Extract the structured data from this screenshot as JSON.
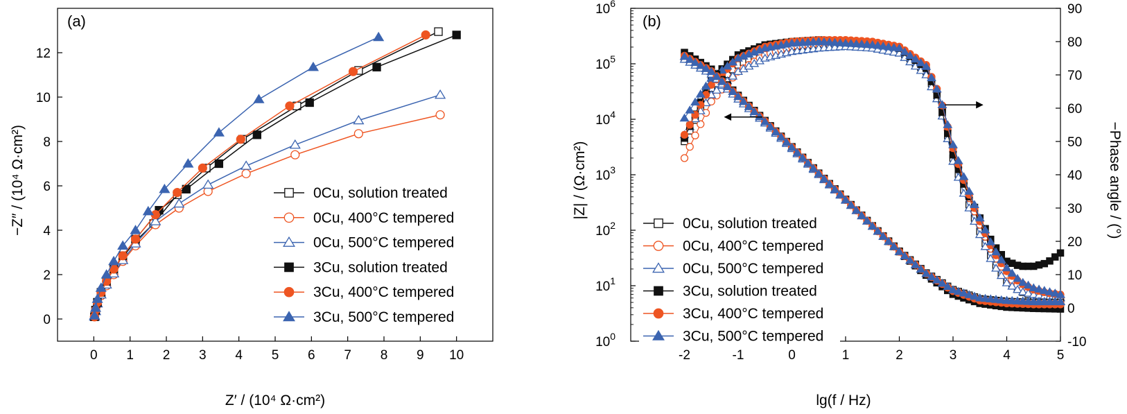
{
  "colors": {
    "black": "#111111",
    "orange": "#ee5522",
    "blue": "#3b64b0"
  },
  "legend_entries": [
    {
      "label": "0Cu, solution treated",
      "color": "#111111",
      "marker": "square",
      "filled": false
    },
    {
      "label": "0Cu, 400°C tempered",
      "color": "#ee5522",
      "marker": "circle",
      "filled": false
    },
    {
      "label": "0Cu, 500°C tempered",
      "color": "#3b64b0",
      "marker": "triangle",
      "filled": false
    },
    {
      "label": "3Cu, solution treated",
      "color": "#111111",
      "marker": "square",
      "filled": true
    },
    {
      "label": "3Cu, 400°C tempered",
      "color": "#ee5522",
      "marker": "circle",
      "filled": true
    },
    {
      "label": "3Cu, 500°C tempered",
      "color": "#3b64b0",
      "marker": "triangle",
      "filled": true
    }
  ],
  "chart_data": [
    {
      "type": "scatter",
      "panel_label": "(a)",
      "xlabel": "Z′ / (10⁴ Ω·cm²)",
      "ylabel": "−Z″ / (10⁴ Ω·cm²)",
      "xlim": [
        -1,
        11
      ],
      "ylim": [
        -1,
        14
      ],
      "xticks": [
        "0",
        "1",
        "2",
        "3",
        "4",
        "5",
        "6",
        "7",
        "8",
        "9",
        "10"
      ],
      "yticks": [
        "0",
        "2",
        "4",
        "6",
        "8",
        "10",
        "12"
      ],
      "legend_position": "bottom-right",
      "series": [
        {
          "name": "0Cu, solution treated",
          "x": [
            0.02,
            0.05,
            0.1,
            0.2,
            0.35,
            0.55,
            0.8,
            1.15,
            1.65,
            2.3,
            3.1,
            4.1,
            5.6,
            7.3,
            9.5
          ],
          "y": [
            0.1,
            0.4,
            0.75,
            1.2,
            1.7,
            2.2,
            2.8,
            3.5,
            4.3,
            5.6,
            6.8,
            8.1,
            9.6,
            11.2,
            12.95
          ]
        },
        {
          "name": "0Cu, 400°C tempered",
          "x": [
            0.02,
            0.05,
            0.1,
            0.2,
            0.35,
            0.55,
            0.8,
            1.15,
            1.7,
            2.35,
            3.15,
            4.2,
            5.55,
            7.3,
            9.55
          ],
          "y": [
            0.1,
            0.35,
            0.65,
            1.05,
            1.5,
            2.0,
            2.6,
            3.3,
            4.25,
            5.0,
            5.75,
            6.55,
            7.4,
            8.35,
            9.2
          ]
        },
        {
          "name": "0Cu, 500°C tempered",
          "x": [
            0.02,
            0.05,
            0.1,
            0.2,
            0.35,
            0.55,
            0.8,
            1.15,
            1.7,
            2.35,
            3.15,
            4.2,
            5.55,
            7.3,
            9.55
          ],
          "y": [
            0.1,
            0.35,
            0.7,
            1.1,
            1.55,
            2.05,
            2.65,
            3.4,
            4.4,
            5.2,
            6.05,
            6.9,
            7.85,
            8.95,
            10.1
          ]
        },
        {
          "name": "3Cu, solution treated",
          "x": [
            0.02,
            0.05,
            0.1,
            0.2,
            0.35,
            0.55,
            0.8,
            1.15,
            1.8,
            2.55,
            3.45,
            4.5,
            5.95,
            7.8,
            10.0
          ],
          "y": [
            0.1,
            0.4,
            0.75,
            1.2,
            1.7,
            2.25,
            2.85,
            3.6,
            4.9,
            5.85,
            7.0,
            8.3,
            9.75,
            11.35,
            12.8
          ]
        },
        {
          "name": "3Cu, 400°C tempered",
          "x": [
            0.02,
            0.05,
            0.1,
            0.2,
            0.35,
            0.55,
            0.8,
            1.15,
            1.7,
            2.3,
            3.0,
            4.05,
            5.4,
            7.15,
            9.15
          ],
          "y": [
            0.1,
            0.4,
            0.75,
            1.2,
            1.7,
            2.25,
            2.85,
            3.6,
            4.7,
            5.7,
            6.8,
            8.1,
            9.6,
            11.15,
            12.8
          ]
        },
        {
          "name": "3Cu, 500°C tempered",
          "x": [
            0.02,
            0.05,
            0.1,
            0.2,
            0.35,
            0.55,
            0.8,
            1.15,
            1.5,
            1.95,
            2.6,
            3.45,
            4.55,
            6.05,
            7.85
          ],
          "y": [
            0.15,
            0.5,
            0.9,
            1.4,
            2.0,
            2.6,
            3.3,
            4.0,
            4.85,
            5.85,
            7.0,
            8.4,
            9.9,
            11.35,
            12.7
          ]
        }
      ]
    },
    {
      "type": "scatter",
      "panel_label": "(b)",
      "xlabel": "lg(f / Hz)",
      "ylabel": "|Z| / (Ω·cm²)",
      "y2label": "−Phase angle / (°)",
      "xlim": [
        -3,
        5
      ],
      "ylim_log": [
        1,
        1000000
      ],
      "y2lim": [
        -10,
        90
      ],
      "xticks": [
        "-2",
        "-1",
        "0",
        "1",
        "2",
        "3",
        "4",
        "5"
      ],
      "yticks_exponents": [
        "0",
        "1",
        "2",
        "3",
        "4",
        "5",
        "6"
      ],
      "y2ticks": [
        "-10",
        "0",
        "10",
        "20",
        "30",
        "40",
        "50",
        "60",
        "70",
        "80",
        "90"
      ],
      "legend_position": "bottom-left",
      "annotations": [
        {
          "kind": "arrow",
          "points_to": "left",
          "x": [
            -0.55,
            -1.25
          ],
          "y_log": 11000
        },
        {
          "kind": "arrow",
          "points_to": "right",
          "x": [
            2.85,
            3.55
          ],
          "y2": 61
        }
      ],
      "phase_series": [
        {
          "name": "0Cu, solution treated",
          "x": [
            -2,
            -1.5,
            -1,
            -0.5,
            0,
            0.5,
            1,
            1.5,
            2,
            2.5,
            2.75,
            3,
            3.25,
            3.5,
            3.75,
            4,
            4.25,
            4.5,
            4.75,
            5
          ],
          "y": [
            50,
            66,
            73,
            77,
            78.5,
            79,
            79.5,
            79,
            77.5,
            71,
            62,
            45,
            33,
            23,
            14,
            8,
            5,
            3.5,
            3,
            2.5
          ]
        },
        {
          "name": "0Cu, 400°C tempered",
          "x": [
            -2,
            -1.5,
            -1,
            -0.5,
            0,
            0.5,
            1,
            1.5,
            2,
            2.5,
            2.75,
            3,
            3.25,
            3.5,
            3.75,
            4,
            4.25,
            4.5,
            4.75,
            5
          ],
          "y": [
            45,
            62,
            71,
            76,
            78.5,
            79.5,
            80,
            79.5,
            78,
            72,
            63,
            47,
            35,
            25,
            16,
            10,
            6,
            4.5,
            3.5,
            3
          ]
        },
        {
          "name": "0Cu, 500°C tempered",
          "x": [
            -2,
            -1.5,
            -1,
            -0.5,
            0,
            0.5,
            1,
            1.5,
            2,
            2.5,
            2.75,
            3,
            3.25,
            3.5,
            3.75,
            4,
            4.25,
            4.5,
            4.75,
            5
          ],
          "y": [
            52,
            64,
            71,
            75,
            77,
            78,
            78.5,
            78,
            76.5,
            70,
            61,
            44,
            32,
            22,
            13,
            7.5,
            5,
            4,
            3.5,
            3
          ]
        },
        {
          "name": "3Cu, solution treated",
          "x": [
            -2,
            -1.5,
            -1,
            -0.5,
            0,
            0.5,
            1,
            1.5,
            2,
            2.5,
            2.75,
            3,
            3.25,
            3.5,
            3.75,
            4,
            4.25,
            4.5,
            4.75,
            5
          ],
          "y": [
            51,
            69,
            76,
            79,
            80,
            80.5,
            80,
            79.5,
            78,
            72,
            62,
            46,
            35,
            27,
            19,
            14,
            12.5,
            12.5,
            13.5,
            16.5
          ]
        },
        {
          "name": "3Cu, 400°C tempered",
          "x": [
            -2,
            -1.5,
            -1,
            -0.5,
            0,
            0.5,
            1,
            1.5,
            2,
            2.5,
            2.75,
            3,
            3.25,
            3.5,
            3.75,
            4,
            4.25,
            4.5,
            4.75,
            5
          ],
          "y": [
            52,
            67,
            75,
            78.5,
            80,
            80.5,
            80.5,
            80,
            78.5,
            73,
            64,
            48,
            36,
            26,
            17,
            11,
            7.5,
            5.5,
            4.5,
            4
          ]
        },
        {
          "name": "3Cu, 500°C tempered",
          "x": [
            -2,
            -1.5,
            -1,
            -0.5,
            0,
            0.5,
            1,
            1.5,
            2,
            2.5,
            2.75,
            3,
            3.25,
            3.5,
            3.75,
            4,
            4.25,
            4.5,
            4.75,
            5
          ],
          "y": [
            57,
            69,
            75,
            78,
            79.5,
            80,
            79.5,
            79,
            78,
            72.5,
            64,
            49,
            37,
            27,
            18,
            12,
            8,
            6,
            5,
            4
          ]
        }
      ],
      "modulus_series": [
        {
          "name": "0Cu, solution treated",
          "x": [
            -2,
            -1.5,
            -1,
            -0.5,
            0,
            0.5,
            1,
            1.5,
            2,
            2.5,
            3,
            3.5,
            4,
            4.5,
            5
          ],
          "y": [
            130000,
            70000,
            25000,
            9000,
            3100,
            1050,
            360,
            120,
            42,
            17,
            8.5,
            5.8,
            5.2,
            5.0,
            5.0
          ]
        },
        {
          "name": "0Cu, 400°C tempered",
          "x": [
            -2,
            -1.5,
            -1,
            -0.5,
            0,
            0.5,
            1,
            1.5,
            2,
            2.5,
            3,
            3.5,
            4,
            4.5,
            5
          ],
          "y": [
            125000,
            68000,
            24000,
            8800,
            3050,
            1030,
            350,
            118,
            41,
            16.5,
            8.2,
            5.6,
            5.0,
            4.8,
            4.8
          ]
        },
        {
          "name": "0Cu, 500°C tempered",
          "x": [
            -2,
            -1.5,
            -1,
            -0.5,
            0,
            0.5,
            1,
            1.5,
            2,
            2.5,
            3,
            3.5,
            4,
            4.5,
            5
          ],
          "y": [
            120000,
            65000,
            23000,
            8500,
            2950,
            1000,
            345,
            117,
            41,
            16.5,
            8.3,
            5.9,
            5.4,
            5.2,
            5.2
          ]
        },
        {
          "name": "3Cu, solution treated",
          "x": [
            -2,
            -1.5,
            -1,
            -0.5,
            0,
            0.5,
            1,
            1.5,
            2,
            2.5,
            3,
            3.5,
            4,
            4.5,
            5
          ],
          "y": [
            160000,
            80000,
            27000,
            9500,
            3200,
            1070,
            360,
            120,
            41,
            15.5,
            7.0,
            4.8,
            4.1,
            3.9,
            3.8
          ]
        },
        {
          "name": "3Cu, 400°C tempered",
          "x": [
            -2,
            -1.5,
            -1,
            -0.5,
            0,
            0.5,
            1,
            1.5,
            2,
            2.5,
            3,
            3.5,
            4,
            4.5,
            5
          ],
          "y": [
            140000,
            74000,
            26000,
            9200,
            3150,
            1050,
            355,
            119,
            41,
            16.5,
            8.0,
            5.4,
            4.8,
            4.6,
            4.6
          ]
        },
        {
          "name": "3Cu, 500°C tempered",
          "x": [
            -2,
            -1.5,
            -1,
            -0.5,
            0,
            0.5,
            1,
            1.5,
            2,
            2.5,
            3,
            3.5,
            4,
            4.5,
            5
          ],
          "y": [
            135000,
            72000,
            25500,
            9000,
            3100,
            1040,
            352,
            118,
            41,
            16.5,
            8.4,
            6.0,
            5.4,
            5.1,
            5.1
          ]
        }
      ]
    }
  ]
}
